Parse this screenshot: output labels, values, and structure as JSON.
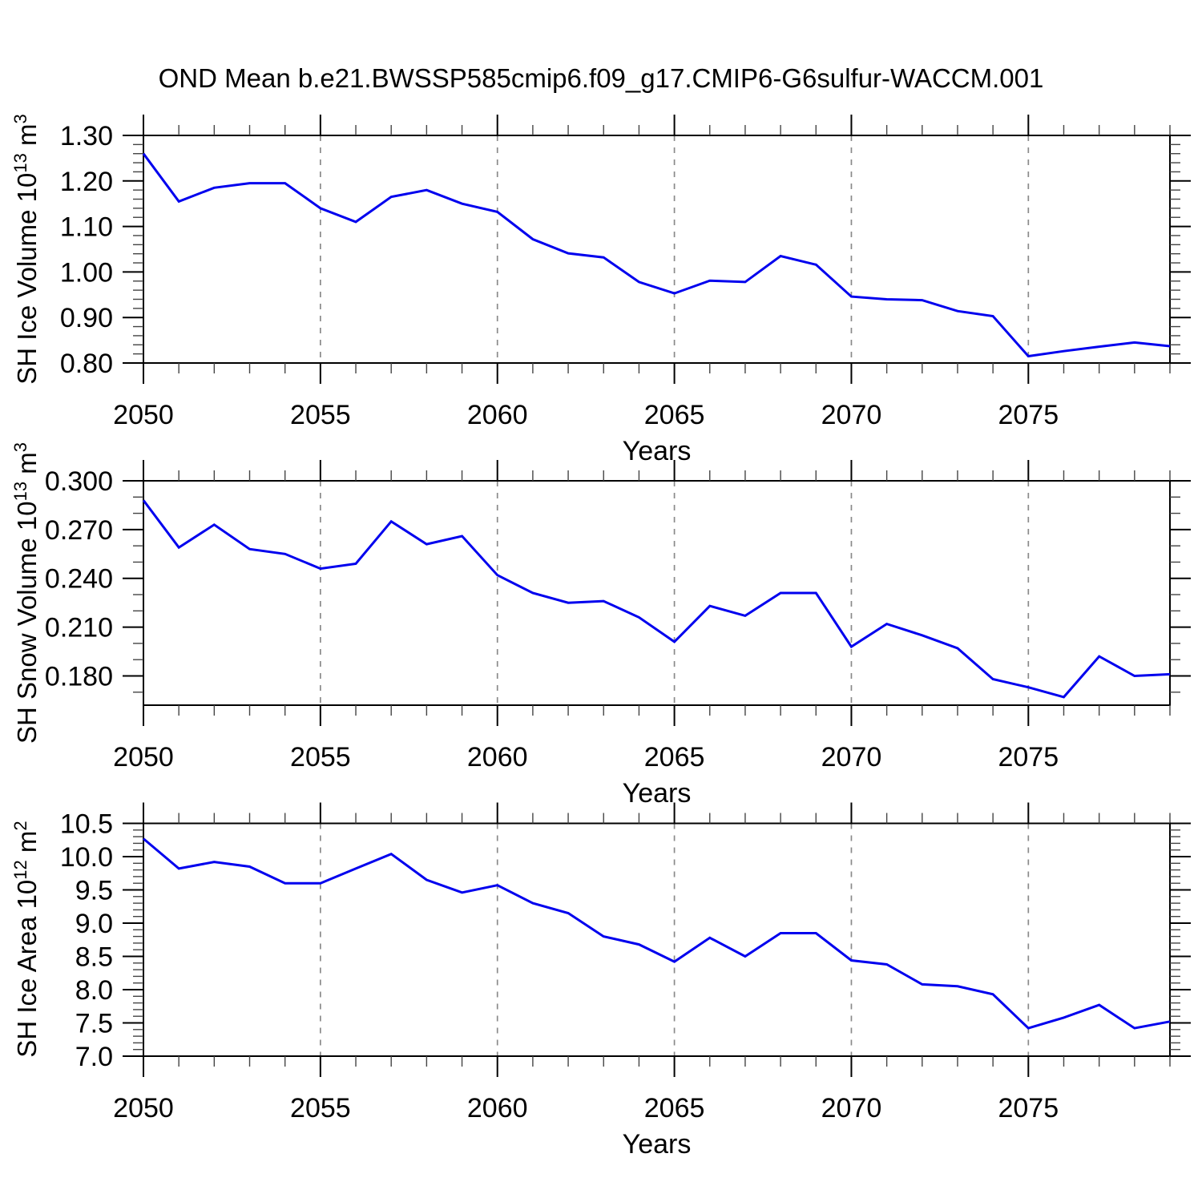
{
  "title": "OND Mean b.e21.BWSSP585cmip6.f09_g17.CMIP6-G6sulfur-WACCM.001",
  "background_color": "#ffffff",
  "line_color": "#0000ee",
  "grid_color": "#8a8a8a",
  "frame_color": "#000000",
  "chart_data": [
    {
      "id": "sh-ice-volume",
      "type": "line",
      "xlabel": "Years",
      "ylabel_parts": {
        "base1": "SH Ice Volume 10",
        "sup1": "13",
        "base2": " m",
        "sup2": "3"
      },
      "x": [
        2050,
        2051,
        2052,
        2053,
        2054,
        2055,
        2056,
        2057,
        2058,
        2059,
        2060,
        2061,
        2062,
        2063,
        2064,
        2065,
        2066,
        2067,
        2068,
        2069,
        2070,
        2071,
        2072,
        2073,
        2074,
        2075,
        2076,
        2077,
        2078,
        2079
      ],
      "values": [
        1.26,
        1.155,
        1.185,
        1.195,
        1.195,
        1.14,
        1.11,
        1.165,
        1.18,
        1.15,
        1.132,
        1.072,
        1.041,
        1.032,
        0.978,
        0.953,
        0.981,
        0.978,
        1.035,
        1.016,
        0.946,
        0.94,
        0.938,
        0.914,
        0.903,
        0.815,
        0.826,
        0.836,
        0.845,
        0.837
      ],
      "xlim": [
        2050,
        2079
      ],
      "ylim": [
        0.8,
        1.3
      ],
      "yticks": [
        0.8,
        0.9,
        1.0,
        1.1,
        1.2,
        1.3
      ],
      "ytick_labels": [
        "0.80",
        "0.90",
        "1.00",
        "1.10",
        "1.20",
        "1.30"
      ],
      "y_minor_step": 0.02,
      "xticks": [
        2050,
        2055,
        2060,
        2065,
        2070,
        2075
      ],
      "xtick_labels": [
        "2050",
        "2055",
        "2060",
        "2065",
        "2070",
        "2075"
      ],
      "x_minor_step": 1,
      "grid": "vertical-dashed-at-major-xticks-except-first",
      "legend": "none"
    },
    {
      "id": "sh-snow-volume",
      "type": "line",
      "xlabel": "Years",
      "ylabel_parts": {
        "base1": "SH Snow Volume 10",
        "sup1": "13",
        "base2": " m",
        "sup2": "3"
      },
      "x": [
        2050,
        2051,
        2052,
        2053,
        2054,
        2055,
        2056,
        2057,
        2058,
        2059,
        2060,
        2061,
        2062,
        2063,
        2064,
        2065,
        2066,
        2067,
        2068,
        2069,
        2070,
        2071,
        2072,
        2073,
        2074,
        2075,
        2076,
        2077,
        2078,
        2079
      ],
      "values": [
        0.288,
        0.259,
        0.273,
        0.258,
        0.255,
        0.246,
        0.249,
        0.275,
        0.261,
        0.266,
        0.242,
        0.231,
        0.225,
        0.226,
        0.216,
        0.201,
        0.223,
        0.217,
        0.231,
        0.231,
        0.198,
        0.212,
        0.205,
        0.197,
        0.178,
        0.173,
        0.167,
        0.192,
        0.18,
        0.181
      ],
      "xlim": [
        2050,
        2079
      ],
      "ylim": [
        0.162,
        0.3
      ],
      "yticks": [
        0.18,
        0.21,
        0.24,
        0.27,
        0.3
      ],
      "ytick_labels": [
        "0.180",
        "0.210",
        "0.240",
        "0.270",
        "0.300"
      ],
      "y_minor_step": 0.01,
      "xticks": [
        2050,
        2055,
        2060,
        2065,
        2070,
        2075
      ],
      "xtick_labels": [
        "2050",
        "2055",
        "2060",
        "2065",
        "2070",
        "2075"
      ],
      "x_minor_step": 1,
      "grid": "vertical-dashed-at-major-xticks-except-first",
      "legend": "none"
    },
    {
      "id": "sh-ice-area",
      "type": "line",
      "xlabel": "Years",
      "ylabel_parts": {
        "base1": "SH Ice Area 10",
        "sup1": "12",
        "base2": " m",
        "sup2": "2"
      },
      "x": [
        2050,
        2051,
        2052,
        2053,
        2054,
        2055,
        2056,
        2057,
        2058,
        2059,
        2060,
        2061,
        2062,
        2063,
        2064,
        2065,
        2066,
        2067,
        2068,
        2069,
        2070,
        2071,
        2072,
        2073,
        2074,
        2075,
        2076,
        2077,
        2078,
        2079
      ],
      "values": [
        10.27,
        9.82,
        9.92,
        9.85,
        9.6,
        9.6,
        9.82,
        10.04,
        9.65,
        9.46,
        9.57,
        9.3,
        9.15,
        8.8,
        8.68,
        8.42,
        8.78,
        8.5,
        8.85,
        8.85,
        8.44,
        8.38,
        8.08,
        8.05,
        7.93,
        7.42,
        7.58,
        7.77,
        7.42,
        7.52
      ],
      "xlim": [
        2050,
        2079
      ],
      "ylim": [
        7.0,
        10.5
      ],
      "yticks": [
        7.0,
        7.5,
        8.0,
        8.5,
        9.0,
        9.5,
        10.0,
        10.5
      ],
      "ytick_labels": [
        "7.0",
        "7.5",
        "8.0",
        "8.5",
        "9.0",
        "9.5",
        "10.0",
        "10.5"
      ],
      "y_minor_step": 0.1,
      "xticks": [
        2050,
        2055,
        2060,
        2065,
        2070,
        2075
      ],
      "xtick_labels": [
        "2050",
        "2055",
        "2060",
        "2065",
        "2070",
        "2075"
      ],
      "x_minor_step": 1,
      "grid": "vertical-dashed-at-major-xticks-except-first",
      "legend": "none"
    }
  ]
}
